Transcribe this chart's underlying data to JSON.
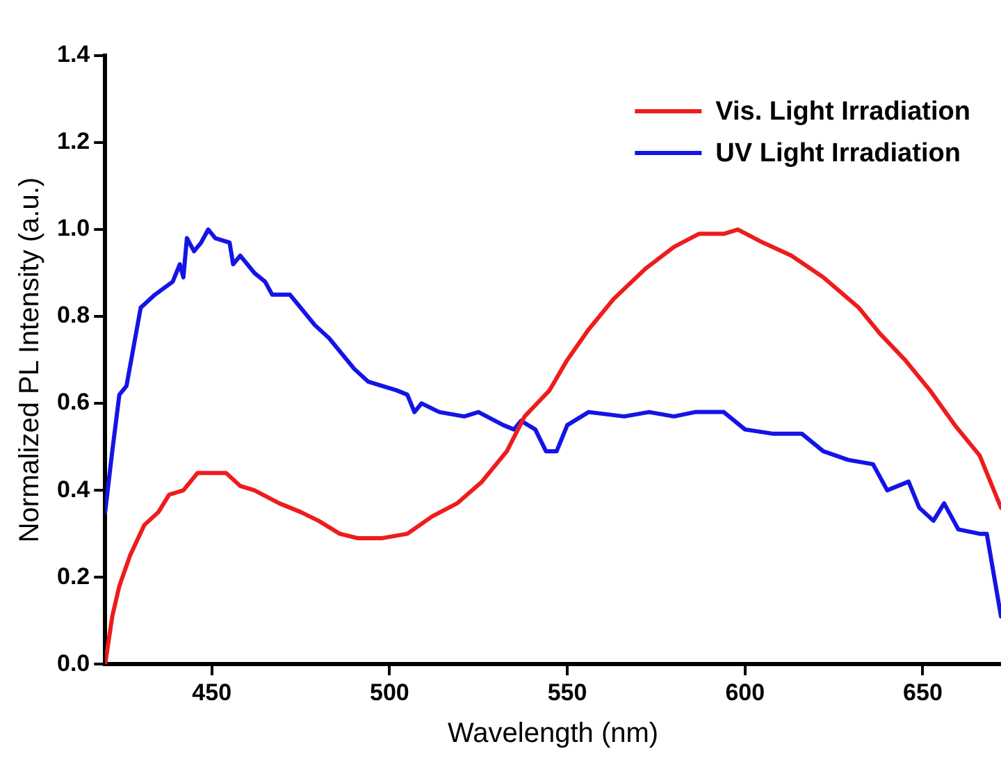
{
  "chart_data": {
    "type": "line",
    "xlabel": "Wavelength (nm)",
    "ylabel": "Normalized PL Intensity (a.u.)",
    "xlim": [
      420,
      672
    ],
    "xticks": [
      450,
      500,
      550,
      600,
      650
    ],
    "ylim": [
      0,
      1.4
    ],
    "yticks": [
      {
        "value": 0,
        "label": "0.0"
      },
      0.2,
      0.4,
      0.6,
      0.8,
      {
        "value": 1,
        "label": "1.0"
      },
      1.2,
      1.4
    ],
    "legend": "top right",
    "grid": false,
    "marker": "none",
    "line_style": "solid",
    "series": [
      {
        "name": "Vis. Light Irradiation",
        "color": "#ee1c1c",
        "x": [
          420,
          422,
          424,
          427,
          431,
          435,
          438,
          442,
          446,
          450,
          454,
          458,
          462,
          469,
          475,
          480,
          486,
          491,
          498,
          505,
          512,
          519,
          526,
          533,
          538,
          545,
          550,
          556,
          563,
          572,
          580,
          587,
          594,
          598,
          605,
          613,
          622,
          632,
          638,
          645,
          652,
          659,
          666,
          672
        ],
        "values": [
          0,
          0.11,
          0.18,
          0.25,
          0.32,
          0.35,
          0.39,
          0.4,
          0.44,
          0.44,
          0.44,
          0.41,
          0.4,
          0.37,
          0.35,
          0.33,
          0.3,
          0.29,
          0.29,
          0.3,
          0.34,
          0.37,
          0.42,
          0.49,
          0.57,
          0.63,
          0.7,
          0.77,
          0.84,
          0.91,
          0.96,
          0.99,
          0.99,
          1.0,
          0.97,
          0.94,
          0.89,
          0.82,
          0.76,
          0.7,
          0.63,
          0.55,
          0.48,
          0.36
        ]
      },
      {
        "name": "UV Light Irradiation",
        "color": "#1414e6",
        "x": [
          420,
          422,
          424,
          426,
          430,
          434,
          439,
          441,
          442,
          443,
          445,
          447,
          449,
          451,
          455,
          456,
          458,
          462,
          465,
          467,
          472,
          476,
          479,
          483,
          487,
          490,
          494,
          498,
          502,
          505,
          507,
          509,
          514,
          521,
          525,
          532,
          535,
          537,
          541,
          544,
          547,
          550,
          556,
          566,
          573,
          580,
          586,
          594,
          600,
          608,
          616,
          622,
          629,
          636,
          640,
          646,
          649,
          653,
          656,
          660,
          666,
          668,
          672
        ],
        "values": [
          0.35,
          0.49,
          0.62,
          0.64,
          0.82,
          0.85,
          0.88,
          0.92,
          0.89,
          0.98,
          0.95,
          0.97,
          1.0,
          0.98,
          0.97,
          0.92,
          0.94,
          0.9,
          0.88,
          0.85,
          0.85,
          0.81,
          0.78,
          0.75,
          0.71,
          0.68,
          0.65,
          0.64,
          0.63,
          0.62,
          0.58,
          0.6,
          0.58,
          0.57,
          0.58,
          0.55,
          0.54,
          0.56,
          0.54,
          0.49,
          0.49,
          0.55,
          0.58,
          0.57,
          0.58,
          0.57,
          0.58,
          0.58,
          0.54,
          0.53,
          0.53,
          0.49,
          0.47,
          0.46,
          0.4,
          0.42,
          0.36,
          0.33,
          0.37,
          0.31,
          0.3,
          0.3,
          0.11
        ]
      }
    ]
  }
}
